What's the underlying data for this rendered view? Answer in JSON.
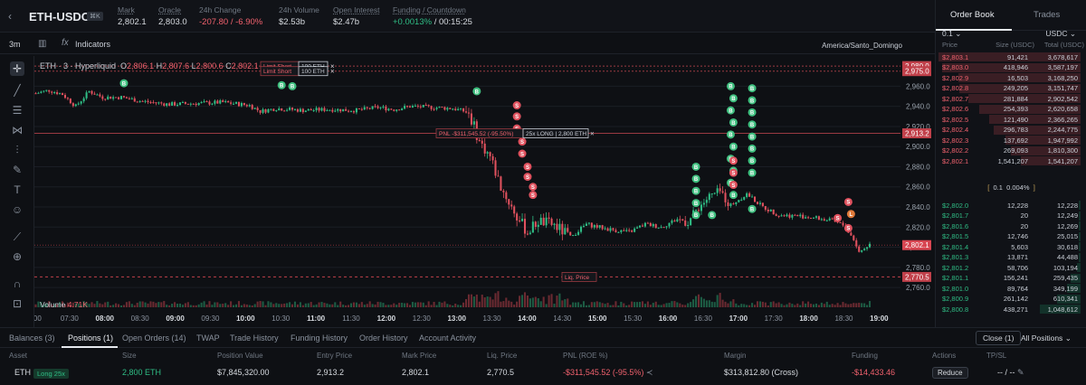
{
  "header": {
    "back_icon": "chevron-left-icon",
    "symbol": "ETH-USDC",
    "shortcut": "⌘K",
    "stats": [
      {
        "label": "Mark",
        "value": "2,802.1",
        "underline": true
      },
      {
        "label": "Oracle",
        "value": "2,803.0",
        "underline": true
      },
      {
        "label": "24h Change",
        "value": "-207.80 / -6.90%",
        "color": "red"
      },
      {
        "label": "24h Volume",
        "value": "$2.53b"
      },
      {
        "label": "Open Interest",
        "value": "$2.47b",
        "underline": true
      },
      {
        "label": "Funding / Countdown",
        "value_green": "+0.0013%",
        "value_rest": " / 00:15:25",
        "underline": true
      }
    ]
  },
  "toolbar": {
    "timeframe": "3m",
    "indicators": "Indicators",
    "timezone": "America/Santo_Domingo"
  },
  "legend": {
    "title": "ETH · 3 · Hyperliquid",
    "o": "2,806.1",
    "h": "2,807.6",
    "l": "2,800.6",
    "c": "2,802.1"
  },
  "chart_overlay": {
    "orders": [
      {
        "label": "Limit Short",
        "size": "100 ETH",
        "price": "2,980.0"
      },
      {
        "label": "Limit Short",
        "size": "100 ETH",
        "price": "2,975.0"
      }
    ],
    "position_tag": {
      "pnl": "PNL -$311,545.52 (-95.50%)",
      "pos": "25x LONG | 2,800 ETH",
      "price": "2,913.2"
    },
    "liq": {
      "label": "Liq. Price",
      "price": "2,770.5"
    },
    "current_price": "2,802.1",
    "volume_label": "Volume",
    "volume_value": "4.71K"
  },
  "chart_data": {
    "type": "candlestick",
    "y_ticks": [
      "2,960.0",
      "2,940.0",
      "2,920.0",
      "2,900.0",
      "2,880.0",
      "2,860.0",
      "2,840.0",
      "2,820.0",
      "2,800.0",
      "2,780.0",
      "2,760.0"
    ],
    "ylim": [
      2752,
      2990
    ],
    "x_ticks": [
      "7:00",
      "07:30",
      "08:00",
      "08:30",
      "09:00",
      "09:30",
      "10:00",
      "10:30",
      "11:00",
      "11:30",
      "12:00",
      "12:30",
      "13:00",
      "13:30",
      "14:00",
      "14:30",
      "15:00",
      "15:30",
      "16:00",
      "16:30",
      "17:00",
      "17:30",
      "18:00",
      "18:30",
      "19:00"
    ],
    "x_bold": [
      "08:00",
      "09:00",
      "10:00",
      "11:00",
      "12:00",
      "13:00",
      "14:00",
      "15:00",
      "16:00",
      "17:00",
      "18:00",
      "19:00"
    ],
    "close_path": [
      [
        0,
        2953
      ],
      [
        5,
        2956
      ],
      [
        10,
        2952
      ],
      [
        15,
        2940
      ],
      [
        20,
        2955
      ],
      [
        25,
        2949
      ],
      [
        32,
        2949
      ],
      [
        40,
        2945
      ],
      [
        50,
        2942
      ],
      [
        60,
        2943
      ],
      [
        70,
        2944
      ],
      [
        80,
        2941
      ],
      [
        84,
        2935
      ],
      [
        90,
        2938
      ],
      [
        100,
        2936
      ],
      [
        110,
        2937
      ],
      [
        120,
        2936
      ],
      [
        128,
        2939
      ],
      [
        134,
        2937
      ],
      [
        140,
        2940
      ],
      [
        148,
        2939
      ],
      [
        156,
        2938
      ],
      [
        162,
        2934
      ],
      [
        166,
        2905
      ],
      [
        170,
        2890
      ],
      [
        174,
        2860
      ],
      [
        180,
        2830
      ],
      [
        184,
        2815
      ],
      [
        188,
        2826
      ],
      [
        194,
        2822
      ],
      [
        200,
        2810
      ],
      [
        206,
        2823
      ],
      [
        214,
        2818
      ],
      [
        222,
        2815
      ],
      [
        228,
        2823
      ],
      [
        234,
        2820
      ],
      [
        240,
        2828
      ],
      [
        244,
        2825
      ],
      [
        248,
        2840
      ],
      [
        252,
        2850
      ],
      [
        256,
        2855
      ],
      [
        260,
        2842
      ],
      [
        266,
        2853
      ],
      [
        272,
        2840
      ],
      [
        278,
        2832
      ],
      [
        286,
        2831
      ],
      [
        292,
        2829
      ],
      [
        298,
        2826
      ],
      [
        302,
        2822
      ],
      [
        306,
        2808
      ],
      [
        308,
        2795
      ],
      [
        312,
        2803
      ]
    ],
    "x_range": [
      0,
      324
    ],
    "x_label_every": 12
  },
  "orderbook": {
    "tabs": [
      "Order Book",
      "Trades"
    ],
    "tick": "0.1",
    "currency": "USDC",
    "headers": [
      "Price",
      "Size (USDC)",
      "Total (USDC)"
    ],
    "asks": [
      [
        "$2,803.1",
        "91,421",
        "3,678,617"
      ],
      [
        "$2,803.0",
        "418,946",
        "3,587,197"
      ],
      [
        "$2,802.9",
        "16,503",
        "3,168,250"
      ],
      [
        "$2,802.8",
        "249,205",
        "3,151,747"
      ],
      [
        "$2,802.7",
        "281,884",
        "2,902,542"
      ],
      [
        "$2,802.6",
        "254,393",
        "2,620,658"
      ],
      [
        "$2,802.5",
        "121,490",
        "2,366,265"
      ],
      [
        "$2,802.4",
        "296,783",
        "2,244,775"
      ],
      [
        "$2,802.3",
        "137,692",
        "1,947,992"
      ],
      [
        "$2,802.2",
        "269,093",
        "1,810,300"
      ],
      [
        "$2,802.1",
        "1,541,207",
        "1,541,207"
      ]
    ],
    "ask_totals": [
      3678617,
      3587197,
      3168250,
      3151747,
      2902542,
      2620658,
      2366265,
      2244775,
      1947992,
      1810300,
      1541207
    ],
    "spread": [
      "0.1",
      "0.004%"
    ],
    "bids": [
      [
        "$2,802.0",
        "12,228",
        "12,228"
      ],
      [
        "$2,801.7",
        "20",
        "12,249"
      ],
      [
        "$2,801.6",
        "20",
        "12,269"
      ],
      [
        "$2,801.5",
        "12,746",
        "25,015"
      ],
      [
        "$2,801.4",
        "5,603",
        "30,618"
      ],
      [
        "$2,801.3",
        "13,871",
        "44,488"
      ],
      [
        "$2,801.2",
        "58,706",
        "103,194"
      ],
      [
        "$2,801.1",
        "156,241",
        "259,435"
      ],
      [
        "$2,801.0",
        "89,764",
        "349,199"
      ],
      [
        "$2,800.9",
        "261,142",
        "610,341"
      ],
      [
        "$2,800.8",
        "438,271",
        "1,048,612"
      ]
    ],
    "bid_totals": [
      12228,
      12249,
      12269,
      25015,
      30618,
      44488,
      103194,
      259435,
      349199,
      610341,
      1048612
    ]
  },
  "bottom": {
    "tabs": [
      "Balances (3)",
      "Positions (1)",
      "Open Orders (14)",
      "TWAP",
      "Trade History",
      "Funding History",
      "Order History",
      "Account Activity"
    ],
    "close_btn": "Close (1)",
    "all_positions": "All Positions",
    "headers": [
      "Asset",
      "Size",
      "Position Value",
      "Entry Price",
      "Mark Price",
      "Liq. Price",
      "PNL (ROE %)",
      "Margin",
      "Funding",
      "Actions",
      "TP/SL"
    ],
    "row": {
      "asset": "ETH",
      "lev": "Long 25x",
      "size": "2,800 ETH",
      "value": "$7,845,320.00",
      "entry": "2,913.2",
      "mark": "2,802.1",
      "liq": "2,770.5",
      "pnl": "-$311,545.52 (-95.5%)",
      "margin": "$313,812.80 (Cross)",
      "funding": "-$14,433.46",
      "action": "Reduce",
      "tpsl": "-- / --"
    }
  }
}
